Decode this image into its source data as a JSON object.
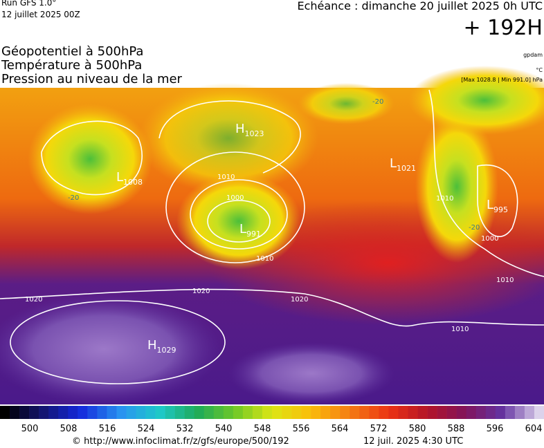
{
  "header": {
    "run": "Run GFS 1.0°",
    "run_date": "12 juillet 2025 00Z",
    "echeance": "Echéance : dimanche 20 juillet 2025 0h UTC",
    "lead": "+ 192H",
    "fields": [
      "Géopotentiel à 500hPa",
      "Température à 500hPa",
      "Pression au niveau de la mer"
    ],
    "units": [
      "gpdam",
      "°C",
      "[Max 1028.8 | Min 991.0] hPa"
    ]
  },
  "map": {
    "centers": [
      {
        "letter": "H",
        "value": "1023"
      },
      {
        "letter": "L",
        "value": "1008"
      },
      {
        "letter": "L",
        "value": "991"
      },
      {
        "letter": "L",
        "value": "1021"
      },
      {
        "letter": "L",
        "value": "995"
      },
      {
        "letter": "H",
        "value": "1029"
      }
    ],
    "isobar_labels": [
      "1010",
      "1000",
      "1010",
      "1020",
      "1020",
      "1020",
      "1010",
      "1010",
      "1000",
      "1010"
    ],
    "temperature_labels": [
      "-20",
      "-20",
      "-20"
    ]
  },
  "legend": {
    "ticks": [
      "500",
      "508",
      "516",
      "524",
      "532",
      "540",
      "548",
      "556",
      "564",
      "572",
      "580",
      "588",
      "596",
      "604"
    ]
  },
  "footer": {
    "url": "© http://www.infoclimat.fr/z/gfs/europe/500/192",
    "time": "12 juil. 2025  4:30 UTC"
  }
}
